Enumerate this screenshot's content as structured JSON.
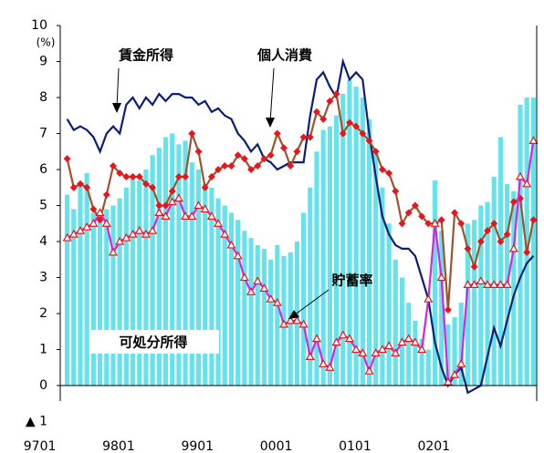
{
  "chart_data": {
    "type": "combo",
    "unit_label": "(%)",
    "categories": [
      "9701",
      null,
      null,
      null,
      null,
      null,
      null,
      null,
      null,
      null,
      null,
      null,
      "9801",
      null,
      null,
      null,
      null,
      null,
      null,
      null,
      null,
      null,
      null,
      null,
      "9901",
      null,
      null,
      null,
      null,
      null,
      null,
      null,
      null,
      null,
      null,
      null,
      "0001",
      null,
      null,
      null,
      null,
      null,
      null,
      null,
      null,
      null,
      null,
      null,
      "0101",
      null,
      null,
      null,
      null,
      null,
      null,
      null,
      null,
      null,
      null,
      null,
      "0201",
      null,
      null,
      null,
      null,
      null,
      null,
      null,
      null,
      null,
      null,
      null
    ],
    "ylim": [
      -1,
      10
    ],
    "yticks": [
      {
        "value": -1,
        "label": "▲ 1"
      },
      0,
      1,
      2,
      3,
      4,
      5,
      6,
      7,
      8,
      9,
      10
    ],
    "series": [
      {
        "name": "可処分所得",
        "kind": "bar",
        "color": "#66e3ea",
        "values": [
          5.3,
          4.9,
          5.6,
          5.9,
          4.8,
          4.6,
          4.9,
          5.0,
          5.2,
          5.5,
          5.8,
          5.7,
          6.0,
          6.4,
          6.6,
          6.9,
          7.0,
          6.7,
          6.8,
          6.2,
          6.0,
          5.6,
          5.5,
          5.2,
          5.0,
          4.8,
          4.6,
          4.3,
          4.1,
          3.9,
          3.8,
          3.5,
          3.9,
          3.6,
          3.7,
          4.0,
          4.8,
          5.5,
          6.5,
          7.1,
          7.2,
          7.5,
          8.1,
          8.5,
          8.3,
          8.0,
          7.4,
          6.5,
          5.5,
          4.5,
          3.5,
          3.0,
          2.3,
          1.8,
          1.3,
          1.0,
          5.7,
          4.3,
          1.7,
          1.9,
          2.3,
          4.5,
          4.6,
          5.0,
          5.1,
          5.8,
          6.9,
          5.6,
          5.4,
          7.8,
          8.0,
          8.0
        ]
      },
      {
        "name": "賃金所得",
        "kind": "line",
        "color": "#0b1f78",
        "values": [
          7.4,
          7.1,
          7.2,
          7.1,
          6.9,
          6.5,
          7.0,
          7.2,
          7.0,
          7.8,
          8.0,
          7.7,
          8.0,
          7.8,
          8.1,
          7.9,
          8.1,
          8.1,
          8.0,
          8.0,
          7.8,
          7.9,
          7.6,
          7.7,
          7.5,
          7.4,
          7.0,
          6.8,
          6.5,
          6.7,
          6.3,
          6.2,
          6.0,
          6.1,
          6.2,
          6.2,
          6.2,
          7.5,
          8.5,
          8.7,
          8.3,
          8.0,
          9.0,
          8.5,
          8.7,
          8.5,
          7.0,
          5.8,
          4.7,
          4.2,
          3.9,
          3.8,
          3.8,
          3.6,
          3.0,
          2.4,
          1.2,
          0.5,
          0.0,
          0.3,
          0.5,
          -0.2,
          -0.1,
          0.0,
          0.8,
          1.6,
          1.1,
          1.8,
          2.5,
          3.0,
          3.4,
          3.6
        ]
      },
      {
        "name": "個人消費",
        "kind": "line",
        "marker": "diamond",
        "color": "#a0522d",
        "marker_color": "#e8161c",
        "values": [
          6.3,
          5.5,
          5.6,
          5.5,
          4.9,
          4.6,
          5.3,
          6.1,
          5.9,
          5.8,
          5.8,
          5.8,
          5.6,
          5.5,
          5.0,
          5.0,
          5.4,
          5.8,
          5.8,
          7.0,
          6.5,
          5.5,
          5.8,
          6.0,
          6.1,
          6.1,
          6.4,
          6.3,
          6.0,
          6.1,
          6.3,
          6.4,
          7.0,
          6.6,
          6.1,
          6.5,
          6.9,
          6.9,
          7.6,
          7.4,
          7.9,
          8.1,
          7.0,
          7.3,
          7.2,
          7.0,
          6.8,
          6.5,
          6.0,
          5.9,
          5.4,
          4.5,
          4.8,
          5.0,
          4.7,
          4.5,
          4.5,
          4.6,
          2.1,
          4.8,
          4.5,
          3.8,
          3.3,
          4.0,
          4.3,
          4.5,
          4.0,
          4.2,
          5.1,
          5.2,
          3.7,
          4.6
        ]
      },
      {
        "name": "貯蓄率",
        "kind": "line",
        "marker": "triangle",
        "color": "#e020e0",
        "marker_color": "#e8161c",
        "values": [
          4.1,
          4.2,
          4.3,
          4.4,
          4.5,
          4.8,
          4.5,
          3.7,
          4.0,
          4.1,
          4.2,
          4.3,
          4.2,
          4.3,
          4.8,
          4.7,
          5.1,
          5.2,
          4.7,
          4.7,
          5.0,
          4.9,
          4.7,
          4.5,
          4.2,
          3.9,
          3.6,
          3.0,
          2.6,
          2.9,
          2.7,
          2.4,
          2.3,
          1.7,
          1.8,
          1.8,
          1.7,
          0.8,
          1.3,
          0.6,
          0.5,
          1.2,
          1.4,
          1.3,
          1.0,
          0.9,
          0.4,
          0.9,
          1.0,
          1.1,
          0.9,
          1.2,
          1.3,
          1.2,
          1.0,
          2.4,
          4.5,
          3.0,
          0.1,
          0.3,
          0.6,
          2.8,
          2.8,
          2.9,
          2.8,
          2.8,
          2.8,
          2.8,
          3.8,
          5.8,
          5.6,
          6.8
        ]
      }
    ]
  }
}
